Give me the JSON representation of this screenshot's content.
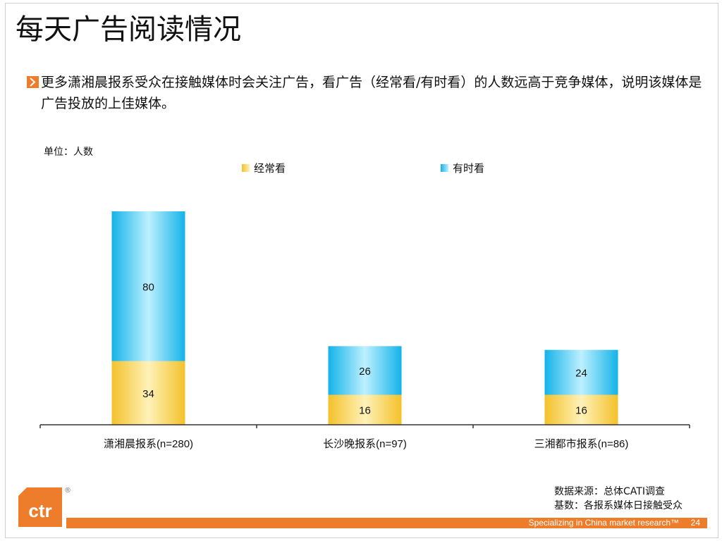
{
  "slide": {
    "title": "每天广告阅读情况",
    "bullet": "更多潇湘晨报系受众在接触媒体时会关注广告，看广告（经常看/有时看）的人数远高于竞争媒体，说明该媒体是广告投放的上佳媒体。",
    "unit_label": "单位：人数",
    "source_line1": "数据来源：总体CATI调查",
    "source_line2": "基数：各报系媒体日接触受众",
    "tagline": "Specializing in China market research™",
    "page_number": "24",
    "logo_icon": "ctr-logo-icon",
    "logo_text": "ctr",
    "colors": {
      "accent": "#ee7d2b",
      "often": "#f7d13a",
      "sometimes": "#29c3ef"
    }
  },
  "chart_data": {
    "type": "bar",
    "stacked": true,
    "categories": [
      "潇湘晨报系(n=280)",
      "长沙晚报系(n=97)",
      "三湘都市报系(n=86)"
    ],
    "series": [
      {
        "name": "经常看",
        "values": [
          34,
          16,
          16
        ]
      },
      {
        "name": "有时看",
        "values": [
          80,
          26,
          24
        ]
      }
    ],
    "ylim": [
      0,
      114
    ],
    "grid": false,
    "legend": "top"
  }
}
